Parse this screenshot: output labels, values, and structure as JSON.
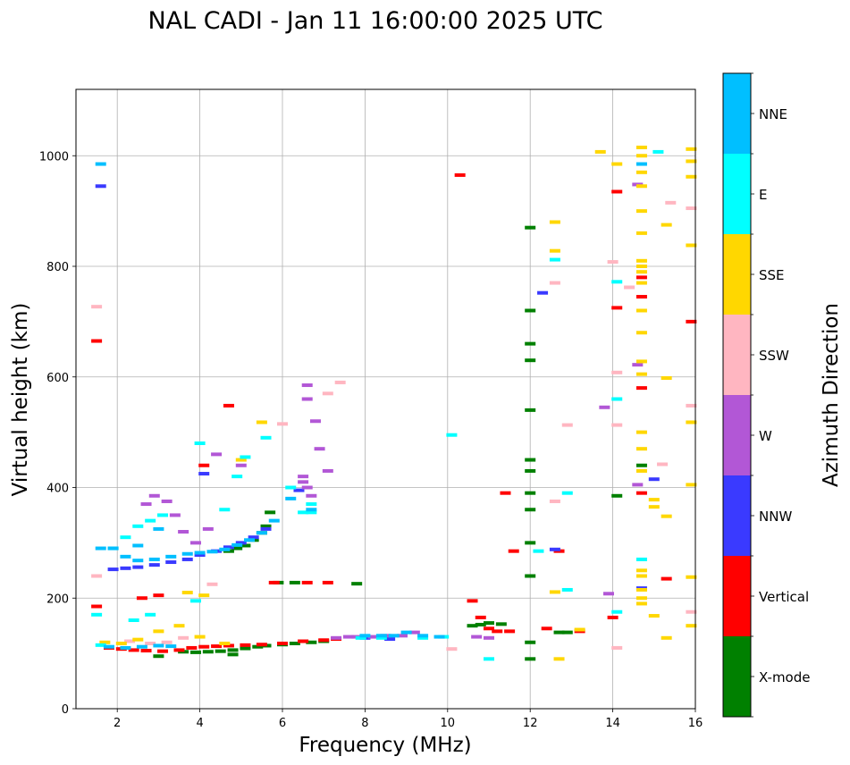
{
  "chart_data": {
    "type": "scatter",
    "title": "NAL CADI - Jan 11 16:00:00 2025 UTC",
    "xlabel": "Frequency (MHz)",
    "ylabel": "Virtual height (km)",
    "xlim": [
      1,
      16
    ],
    "ylim": [
      0,
      1120
    ],
    "xticks": [
      2,
      4,
      6,
      8,
      10,
      12,
      14,
      16
    ],
    "yticks": [
      0,
      200,
      400,
      600,
      800,
      1000
    ],
    "grid": true,
    "colorbar": {
      "label": "Azimuth Direction",
      "position": "right",
      "categories": [
        {
          "name": "X-mode",
          "color": "#008000"
        },
        {
          "name": "Vertical",
          "color": "#ff0000"
        },
        {
          "name": "NNW",
          "color": "#3a3aff"
        },
        {
          "name": "W",
          "color": "#b257d6"
        },
        {
          "name": "SSW",
          "color": "#ffb6c1"
        },
        {
          "name": "SSE",
          "color": "#ffd700"
        },
        {
          "name": "E",
          "color": "#00ffff"
        },
        {
          "name": "NNE",
          "color": "#00bfff"
        }
      ]
    },
    "series": [
      {
        "name": "X-mode",
        "points": [
          [
            3.6,
            103
          ],
          [
            3.9,
            102
          ],
          [
            4.2,
            103
          ],
          [
            4.5,
            104
          ],
          [
            4.8,
            106
          ],
          [
            5.1,
            109
          ],
          [
            5.4,
            112
          ],
          [
            5.6,
            114
          ],
          [
            6.0,
            116
          ],
          [
            6.3,
            118
          ],
          [
            6.7,
            120
          ],
          [
            7.0,
            122
          ],
          [
            10.6,
            150
          ],
          [
            10.8,
            152
          ],
          [
            11.0,
            155
          ],
          [
            11.3,
            153
          ],
          [
            12.7,
            138
          ],
          [
            12.9,
            138
          ],
          [
            5.9,
            228
          ],
          [
            6.3,
            228
          ],
          [
            7.8,
            226
          ],
          [
            4.7,
            285
          ],
          [
            4.9,
            290
          ],
          [
            5.1,
            295
          ],
          [
            5.3,
            305
          ],
          [
            5.5,
            318
          ],
          [
            5.6,
            330
          ],
          [
            5.7,
            355
          ],
          [
            12.0,
            870
          ],
          [
            12.0,
            720
          ],
          [
            12.0,
            660
          ],
          [
            12.0,
            630
          ],
          [
            12.0,
            540
          ],
          [
            12.0,
            450
          ],
          [
            12.0,
            430
          ],
          [
            12.0,
            390
          ],
          [
            12.0,
            360
          ],
          [
            12.0,
            300
          ],
          [
            12.0,
            240
          ],
          [
            12.0,
            120
          ],
          [
            12.0,
            90
          ],
          [
            14.1,
            385
          ],
          [
            14.7,
            440
          ],
          [
            3.0,
            95
          ],
          [
            4.8,
            98
          ]
        ]
      },
      {
        "name": "Vertical",
        "points": [
          [
            1.5,
            665
          ],
          [
            1.5,
            185
          ],
          [
            1.8,
            110
          ],
          [
            2.1,
            108
          ],
          [
            2.4,
            106
          ],
          [
            2.7,
            105
          ],
          [
            3.1,
            104
          ],
          [
            3.5,
            106
          ],
          [
            3.8,
            110
          ],
          [
            4.1,
            112
          ],
          [
            4.4,
            113
          ],
          [
            4.7,
            114
          ],
          [
            5.1,
            115
          ],
          [
            5.5,
            116
          ],
          [
            6.0,
            118
          ],
          [
            6.5,
            122
          ],
          [
            7.0,
            124
          ],
          [
            7.3,
            126
          ],
          [
            10.3,
            965
          ],
          [
            10.6,
            195
          ],
          [
            10.8,
            165
          ],
          [
            11.0,
            145
          ],
          [
            11.2,
            140
          ],
          [
            11.5,
            140
          ],
          [
            12.4,
            145
          ],
          [
            12.7,
            285
          ],
          [
            13.2,
            140
          ],
          [
            14.0,
            165
          ],
          [
            14.1,
            935
          ],
          [
            14.1,
            725
          ],
          [
            14.7,
            390
          ],
          [
            14.7,
            580
          ],
          [
            14.7,
            745
          ],
          [
            14.7,
            780
          ],
          [
            15.3,
            235
          ],
          [
            15.9,
            700
          ],
          [
            11.6,
            285
          ],
          [
            11.4,
            390
          ],
          [
            4.1,
            440
          ],
          [
            4.7,
            548
          ],
          [
            5.8,
            228
          ],
          [
            6.6,
            228
          ],
          [
            7.1,
            228
          ],
          [
            2.6,
            200
          ],
          [
            3.0,
            205
          ]
        ]
      },
      {
        "name": "NNW",
        "points": [
          [
            1.6,
            945
          ],
          [
            1.9,
            252
          ],
          [
            2.2,
            254
          ],
          [
            2.5,
            256
          ],
          [
            2.9,
            260
          ],
          [
            3.3,
            265
          ],
          [
            3.7,
            270
          ],
          [
            4.0,
            278
          ],
          [
            4.4,
            285
          ],
          [
            4.7,
            292
          ],
          [
            5.0,
            300
          ],
          [
            5.3,
            310
          ],
          [
            5.6,
            325
          ],
          [
            4.1,
            425
          ],
          [
            12.3,
            752
          ],
          [
            12.6,
            288
          ],
          [
            14.7,
            218
          ],
          [
            15.0,
            415
          ],
          [
            6.4,
            395
          ],
          [
            8.0,
            128
          ],
          [
            8.6,
            126
          ]
        ]
      },
      {
        "name": "W",
        "points": [
          [
            2.7,
            370
          ],
          [
            2.9,
            385
          ],
          [
            3.2,
            375
          ],
          [
            3.4,
            350
          ],
          [
            3.6,
            320
          ],
          [
            3.9,
            300
          ],
          [
            4.2,
            325
          ],
          [
            6.5,
            420
          ],
          [
            6.5,
            410
          ],
          [
            6.6,
            400
          ],
          [
            6.7,
            385
          ],
          [
            6.6,
            585
          ],
          [
            6.6,
            560
          ],
          [
            6.8,
            520
          ],
          [
            6.9,
            470
          ],
          [
            7.1,
            430
          ],
          [
            7.3,
            128
          ],
          [
            7.6,
            130
          ],
          [
            7.8,
            130
          ],
          [
            8.2,
            130
          ],
          [
            8.5,
            132
          ],
          [
            8.9,
            132
          ],
          [
            9.2,
            138
          ],
          [
            10.7,
            130
          ],
          [
            11.0,
            128
          ],
          [
            14.6,
            948
          ],
          [
            14.6,
            622
          ],
          [
            13.8,
            545
          ],
          [
            13.9,
            208
          ],
          [
            14.6,
            405
          ],
          [
            4.4,
            460
          ],
          [
            5.0,
            440
          ]
        ]
      },
      {
        "name": "SSW",
        "points": [
          [
            1.5,
            727
          ],
          [
            1.5,
            240
          ],
          [
            2.3,
            122
          ],
          [
            2.8,
            118
          ],
          [
            3.2,
            120
          ],
          [
            3.6,
            128
          ],
          [
            7.4,
            590
          ],
          [
            7.1,
            570
          ],
          [
            12.6,
            770
          ],
          [
            12.6,
            375
          ],
          [
            12.9,
            513
          ],
          [
            14.0,
            808
          ],
          [
            14.1,
            608
          ],
          [
            14.1,
            513
          ],
          [
            14.4,
            762
          ],
          [
            15.2,
            442
          ],
          [
            15.4,
            915
          ],
          [
            15.9,
            905
          ],
          [
            15.9,
            548
          ],
          [
            15.9,
            175
          ],
          [
            14.1,
            110
          ],
          [
            10.1,
            108
          ],
          [
            4.3,
            225
          ],
          [
            6.0,
            515
          ]
        ]
      },
      {
        "name": "SSE",
        "points": [
          [
            1.7,
            120
          ],
          [
            2.1,
            118
          ],
          [
            2.5,
            125
          ],
          [
            3.0,
            140
          ],
          [
            3.5,
            150
          ],
          [
            4.0,
            130
          ],
          [
            4.6,
            118
          ],
          [
            5.5,
            518
          ],
          [
            5.0,
            450
          ],
          [
            12.6,
            880
          ],
          [
            12.6,
            828
          ],
          [
            12.6,
            211
          ],
          [
            12.7,
            90
          ],
          [
            13.2,
            143
          ],
          [
            13.7,
            1007
          ],
          [
            14.1,
            985
          ],
          [
            14.7,
            1015
          ],
          [
            14.7,
            1000
          ],
          [
            14.7,
            970
          ],
          [
            14.7,
            945
          ],
          [
            14.7,
            900
          ],
          [
            14.7,
            860
          ],
          [
            14.7,
            810
          ],
          [
            14.7,
            800
          ],
          [
            14.7,
            790
          ],
          [
            14.7,
            770
          ],
          [
            14.7,
            720
          ],
          [
            14.7,
            680
          ],
          [
            14.7,
            628
          ],
          [
            14.7,
            605
          ],
          [
            14.7,
            500
          ],
          [
            14.7,
            470
          ],
          [
            14.7,
            430
          ],
          [
            14.7,
            250
          ],
          [
            14.7,
            240
          ],
          [
            14.7,
            215
          ],
          [
            14.7,
            200
          ],
          [
            14.7,
            190
          ],
          [
            15.0,
            378
          ],
          [
            15.0,
            365
          ],
          [
            15.0,
            168
          ],
          [
            15.3,
            875
          ],
          [
            15.3,
            598
          ],
          [
            15.3,
            348
          ],
          [
            15.3,
            128
          ],
          [
            15.9,
            1012
          ],
          [
            15.9,
            990
          ],
          [
            15.9,
            962
          ],
          [
            15.9,
            838
          ],
          [
            15.9,
            518
          ],
          [
            15.9,
            405
          ],
          [
            15.9,
            238
          ],
          [
            15.9,
            150
          ],
          [
            4.1,
            205
          ],
          [
            3.7,
            210
          ]
        ]
      },
      {
        "name": "E",
        "points": [
          [
            1.5,
            170
          ],
          [
            1.6,
            115
          ],
          [
            1.9,
            290
          ],
          [
            2.2,
            310
          ],
          [
            2.5,
            330
          ],
          [
            2.8,
            340
          ],
          [
            3.1,
            350
          ],
          [
            4.0,
            480
          ],
          [
            4.6,
            360
          ],
          [
            4.9,
            420
          ],
          [
            5.1,
            455
          ],
          [
            5.6,
            490
          ],
          [
            6.7,
            355
          ],
          [
            6.7,
            370
          ],
          [
            6.2,
            400
          ],
          [
            6.5,
            355
          ],
          [
            7.9,
            128
          ],
          [
            8.4,
            128
          ],
          [
            9.4,
            128
          ],
          [
            9.9,
            130
          ],
          [
            10.1,
            495
          ],
          [
            11.0,
            90
          ],
          [
            12.2,
            285
          ],
          [
            12.9,
            390
          ],
          [
            12.9,
            215
          ],
          [
            14.1,
            772
          ],
          [
            14.1,
            560
          ],
          [
            14.1,
            175
          ],
          [
            14.7,
            270
          ],
          [
            15.1,
            1007
          ],
          [
            12.6,
            812
          ],
          [
            2.4,
            160
          ],
          [
            2.8,
            170
          ],
          [
            3.9,
            195
          ]
        ]
      },
      {
        "name": "NNE",
        "points": [
          [
            1.6,
            985
          ],
          [
            1.6,
            290
          ],
          [
            1.9,
            290
          ],
          [
            2.2,
            275
          ],
          [
            2.5,
            268
          ],
          [
            2.9,
            270
          ],
          [
            3.3,
            275
          ],
          [
            3.7,
            280
          ],
          [
            4.0,
            282
          ],
          [
            4.3,
            284
          ],
          [
            4.6,
            288
          ],
          [
            4.9,
            296
          ],
          [
            5.2,
            305
          ],
          [
            5.5,
            318
          ],
          [
            5.8,
            340
          ],
          [
            6.2,
            380
          ],
          [
            6.7,
            360
          ],
          [
            1.8,
            112
          ],
          [
            2.2,
            110
          ],
          [
            2.6,
            112
          ],
          [
            3.0,
            114
          ],
          [
            3.3,
            113
          ],
          [
            8.0,
            132
          ],
          [
            8.4,
            132
          ],
          [
            8.7,
            132
          ],
          [
            9.0,
            138
          ],
          [
            9.4,
            132
          ],
          [
            9.8,
            130
          ],
          [
            14.7,
            985
          ],
          [
            2.5,
            295
          ],
          [
            3.0,
            325
          ]
        ]
      }
    ]
  }
}
